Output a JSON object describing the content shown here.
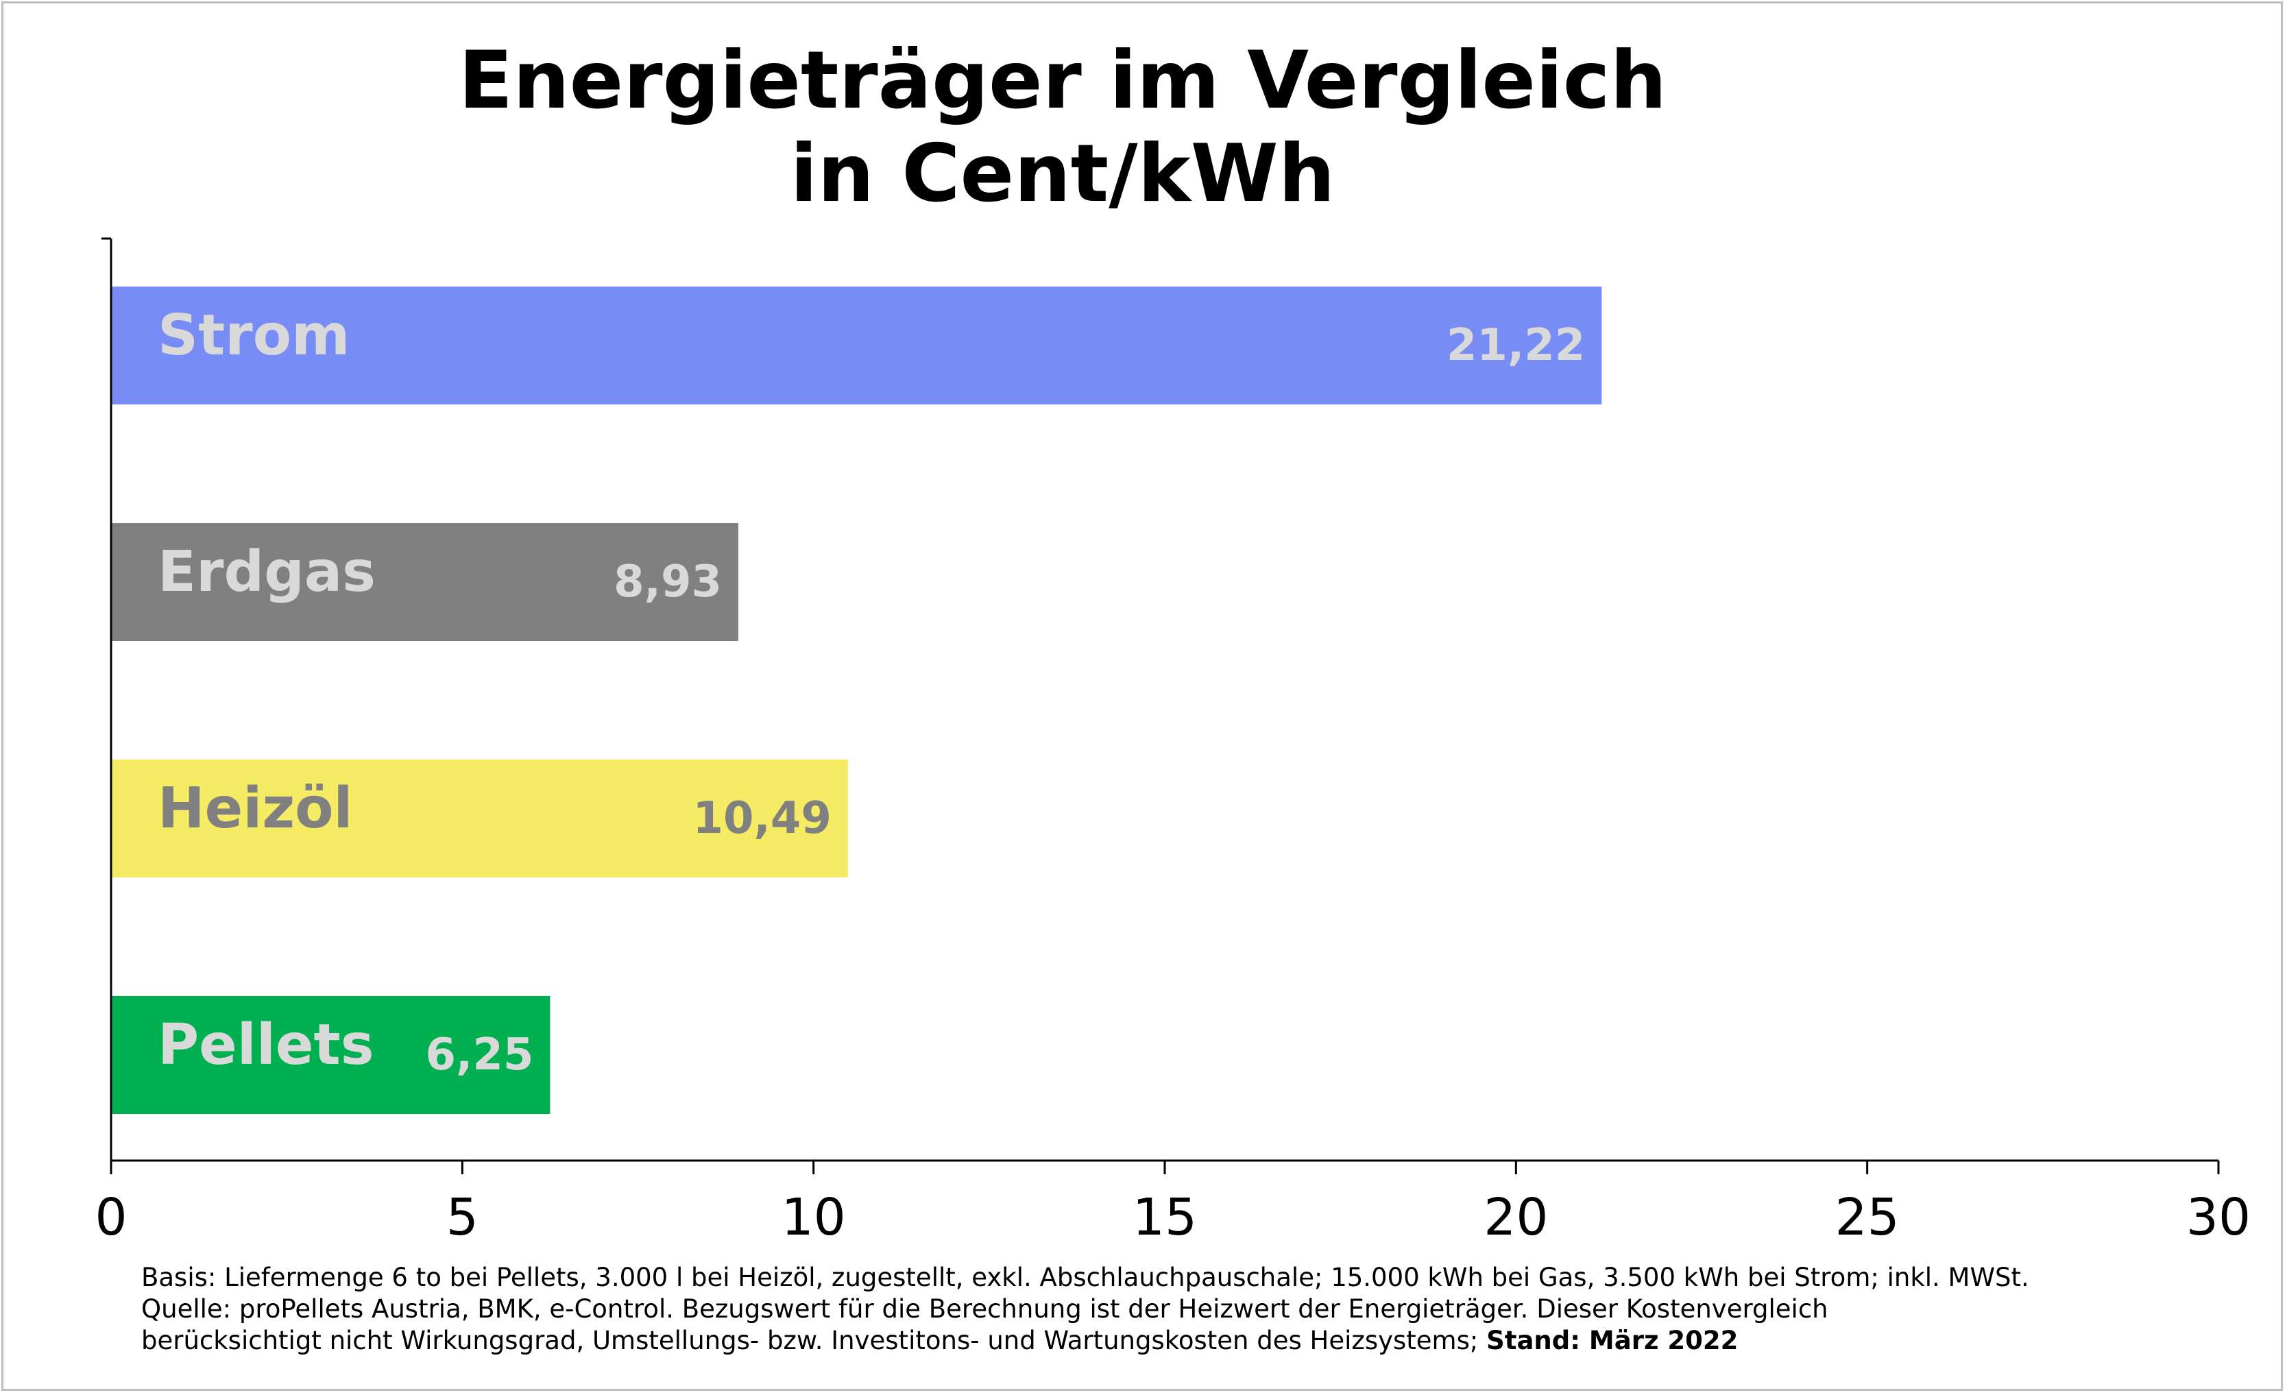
{
  "chart_data": {
    "type": "bar",
    "orientation": "horizontal",
    "title": "Energieträger im Vergleich",
    "subtitle": "in Cent/kWh",
    "categories": [
      "Strom",
      "Erdgas",
      "Heizöl",
      "Pellets"
    ],
    "values": [
      21.22,
      8.93,
      10.49,
      6.25
    ],
    "value_labels": [
      "21,22",
      "8,93",
      "10,49",
      "6,25"
    ],
    "colors": [
      "#788cf5",
      "#808080",
      "#f5eb64",
      "#00b050"
    ],
    "label_colors": [
      "#d9d9d9",
      "#d9d9d9",
      "#808080",
      "#d9d9d9"
    ],
    "xlim": [
      0,
      30
    ],
    "x_ticks": [
      0,
      5,
      10,
      15,
      20,
      25,
      30
    ],
    "xlabel": "",
    "ylabel": "",
    "grid": false,
    "legend": "none"
  },
  "footnote": {
    "line1": "Basis: Liefermenge 6 to bei Pellets, 3.000 l bei Heizöl, zugestellt, exkl. Abschlauchpauschale; 15.000 kWh bei Gas, 3.500 kWh bei Strom; inkl. MWSt.",
    "line2": "Quelle: proPellets Austria, BMK, e-Control. Bezugswert für die Berechnung ist der Heizwert der Energieträger. Dieser Kostenvergleich",
    "line3": "berücksichtigt nicht Wirkungsgrad, Umstellungs- bzw. Investitons- und Wartungskosten des Heizsystems; ",
    "stand": "Stand: März 2022"
  }
}
